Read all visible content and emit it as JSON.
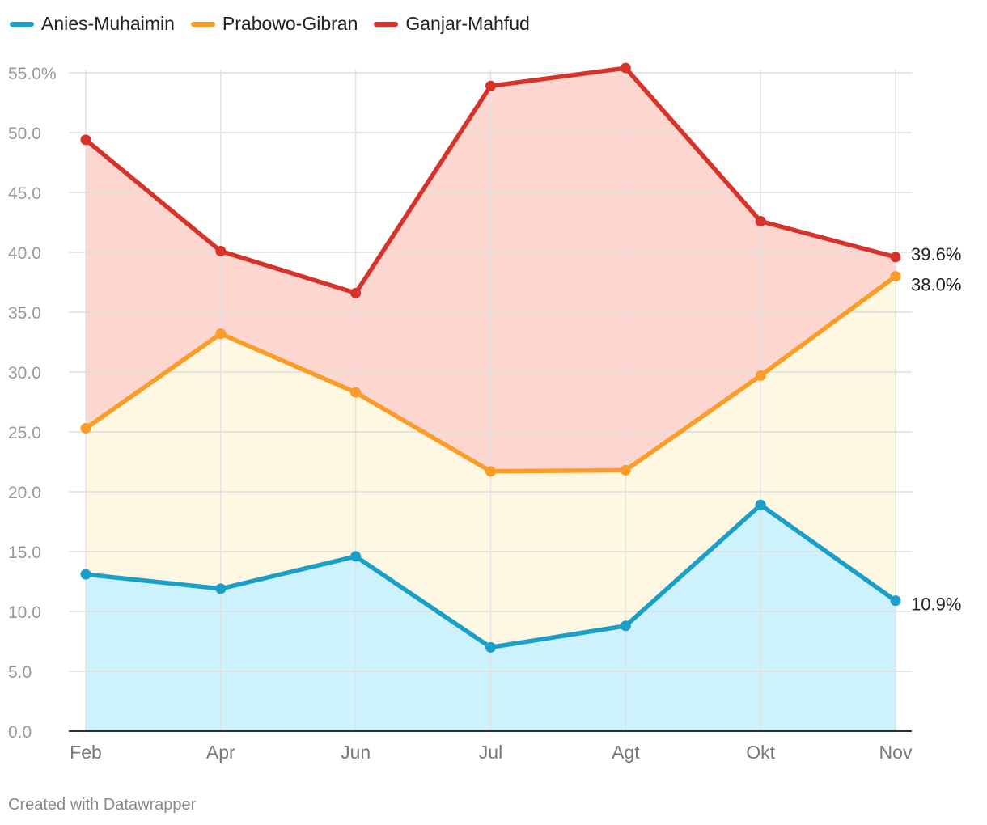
{
  "chart_data": {
    "type": "area",
    "categories": [
      "Feb",
      "Apr",
      "Jun",
      "Jul",
      "Agt",
      "Okt",
      "Nov"
    ],
    "series": [
      {
        "name": "Anies-Muhaimin",
        "color": "#1a9fc9",
        "fill": "#cdf1fd",
        "values": [
          13.1,
          11.9,
          14.6,
          7.0,
          8.8,
          18.9,
          10.9
        ],
        "end_label": "10.9%"
      },
      {
        "name": "Prabowo-Gibran",
        "color": "#fa9c28",
        "fill": "#fef8e2",
        "values": [
          25.3,
          33.2,
          28.3,
          21.7,
          21.8,
          29.7,
          38.0
        ],
        "end_label": "38.0%"
      },
      {
        "name": "Ganjar-Mahfud",
        "color": "#d6342b",
        "fill": "#fdd6cf",
        "values": [
          49.4,
          40.1,
          36.6,
          53.9,
          55.4,
          42.6,
          39.6
        ],
        "end_label": "39.6%"
      }
    ],
    "ylim": [
      0,
      55
    ],
    "yticks": [
      0,
      5,
      10,
      15,
      20,
      25,
      30,
      35,
      40,
      45,
      50,
      55
    ],
    "ytick_labels": [
      "0.0",
      "5.0",
      "10.0",
      "15.0",
      "20.0",
      "25.0",
      "30.0",
      "35.0",
      "40.0",
      "45.0",
      "50.0",
      "55.0%"
    ],
    "xlabel": "",
    "ylabel": "",
    "grid": true,
    "legend": "top-left"
  },
  "footer": "Created with Datawrapper"
}
